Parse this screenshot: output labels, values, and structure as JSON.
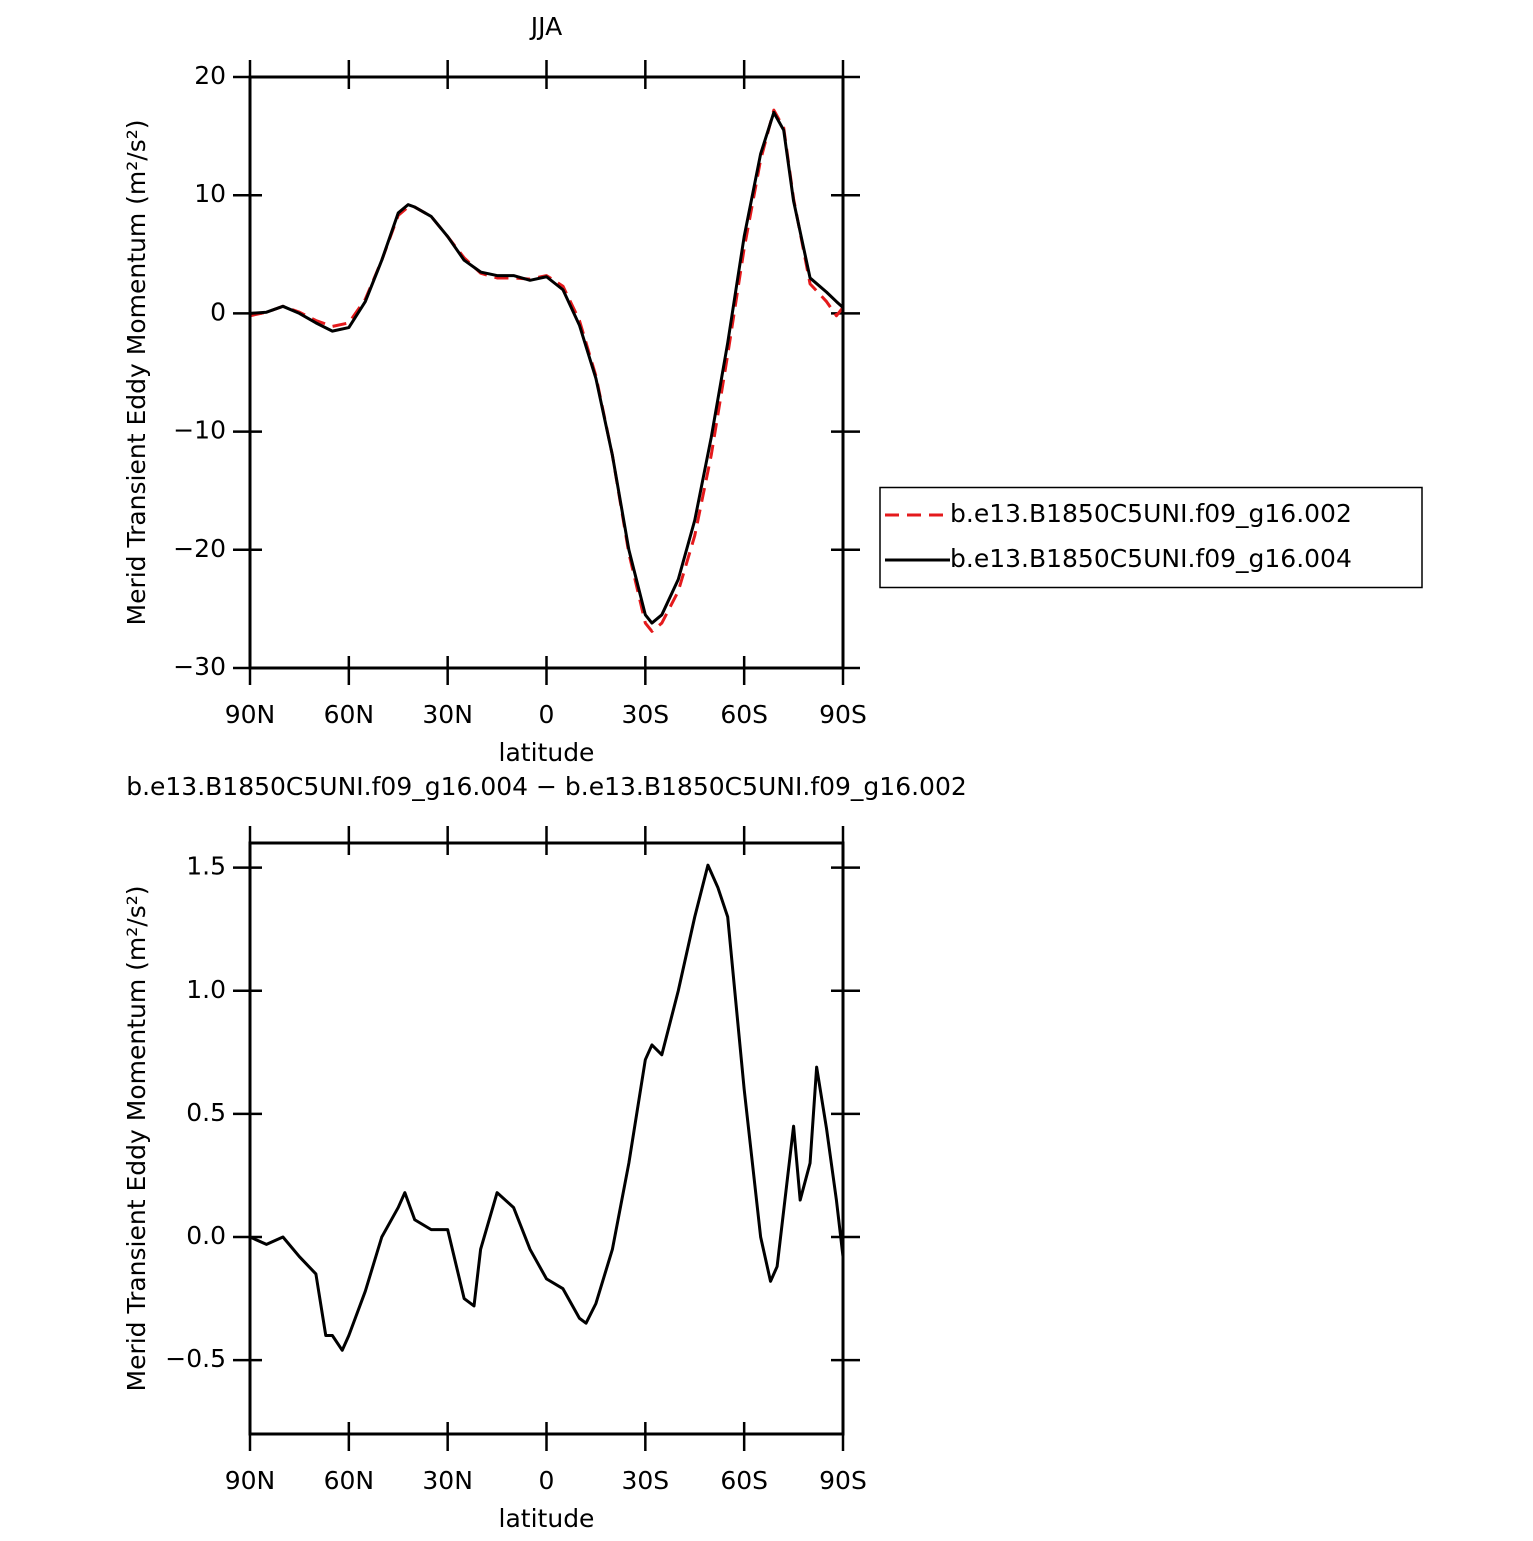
{
  "chart_data": [
    {
      "type": "line",
      "title": "JJA",
      "xlabel": "latitude",
      "ylabel": "Merid Transient Eddy Momentum (m²/s²)",
      "xlim": [
        90,
        -90
      ],
      "ylim": [
        -30,
        20
      ],
      "xticks": [
        {
          "value": 90,
          "label": "90N"
        },
        {
          "value": 60,
          "label": "60N"
        },
        {
          "value": 30,
          "label": "30N"
        },
        0,
        {
          "value": -30,
          "label": "30S"
        },
        {
          "value": -60,
          "label": "60S"
        },
        {
          "value": -90,
          "label": "90S"
        }
      ],
      "yticks": [
        20,
        10,
        0,
        {
          "value": -10,
          "label": "−10"
        },
        {
          "value": -20,
          "label": "−20"
        },
        {
          "value": -30,
          "label": "−30"
        }
      ],
      "legend": "right",
      "x": [
        90,
        85,
        80,
        75,
        70,
        65,
        60,
        55,
        50,
        45,
        42,
        40,
        35,
        30,
        25,
        20,
        15,
        10,
        5,
        0,
        -5,
        -10,
        -15,
        -20,
        -25,
        -30,
        -32,
        -35,
        -40,
        -45,
        -50,
        -55,
        -60,
        -65,
        -69,
        -72,
        -75,
        -80,
        -85,
        -88,
        -90
      ],
      "series": [
        {
          "name": "b.e13.B1850C5UNI.f09_g16.002",
          "color": "#e41a1c",
          "linestyle": "dashed",
          "values": [
            -0.2,
            0.1,
            0.6,
            0.1,
            -0.6,
            -1.1,
            -0.8,
            1.2,
            4.5,
            8.3,
            9.0,
            9.0,
            8.2,
            6.5,
            4.7,
            3.4,
            3.0,
            3.0,
            2.9,
            3.2,
            2.3,
            -0.6,
            -5.3,
            -12,
            -20.3,
            -26.2,
            -26.9,
            -26.2,
            -23.5,
            -18.8,
            -12,
            -3.5,
            5.5,
            13,
            17.2,
            15.7,
            9.7,
            2.5,
            1.0,
            -0.2,
            0.5
          ]
        },
        {
          "name": "b.e13.B1850C5UNI.f09_g16.004",
          "color": "#000000",
          "linestyle": "solid",
          "values": [
            0,
            0.1,
            0.6,
            0,
            -0.8,
            -1.5,
            -1.2,
            1.0,
            4.5,
            8.5,
            9.2,
            9.0,
            8.2,
            6.5,
            4.5,
            3.5,
            3.2,
            3.2,
            2.8,
            3.1,
            2.0,
            -1.0,
            -5.5,
            -12,
            -20,
            -25.5,
            -26.2,
            -25.5,
            -22.5,
            -17.5,
            -10.5,
            -2.5,
            6.5,
            13.5,
            17.0,
            15.5,
            9.5,
            3.0,
            1.8,
            1.0,
            0.5
          ]
        }
      ]
    },
    {
      "type": "line",
      "title": "b.e13.B1850C5UNI.f09_g16.004 − b.e13.B1850C5UNI.f09_g16.002",
      "xlabel": "latitude",
      "ylabel": "Merid Transient Eddy Momentum (m²/s²)",
      "xlim": [
        90,
        -90
      ],
      "ylim": [
        -0.8,
        1.6
      ],
      "xticks": [
        {
          "value": 90,
          "label": "90N"
        },
        {
          "value": 60,
          "label": "60N"
        },
        {
          "value": 30,
          "label": "30N"
        },
        0,
        {
          "value": -30,
          "label": "30S"
        },
        {
          "value": -60,
          "label": "60S"
        },
        {
          "value": -90,
          "label": "90S"
        }
      ],
      "yticks": [
        1.5,
        {
          "value": 1.0,
          "label": "1.0"
        },
        0.5,
        {
          "value": 0.0,
          "label": "0.0"
        },
        {
          "value": -0.5,
          "label": "−0.5"
        }
      ],
      "x": [
        90,
        85,
        80,
        75,
        70,
        67,
        65,
        62,
        60,
        55,
        50,
        45,
        43,
        40,
        35,
        30,
        25,
        22,
        20,
        15,
        10,
        5,
        0,
        -5,
        -10,
        -12,
        -15,
        -20,
        -25,
        -30,
        -32,
        -35,
        -40,
        -45,
        -49,
        -52,
        -55,
        -60,
        -65,
        -68,
        -70,
        -75,
        -77,
        -80,
        -82,
        -85,
        -88,
        -90
      ],
      "series": [
        {
          "color": "#000000",
          "linestyle": "solid",
          "values": [
            0,
            -0.03,
            0.0,
            -0.08,
            -0.15,
            -0.4,
            -0.4,
            -0.46,
            -0.4,
            -0.22,
            0.0,
            0.12,
            0.18,
            0.07,
            0.03,
            0.03,
            -0.25,
            -0.28,
            -0.05,
            0.18,
            0.12,
            -0.05,
            -0.17,
            -0.21,
            -0.33,
            -0.35,
            -0.27,
            -0.05,
            0.3,
            0.72,
            0.78,
            0.74,
            1.0,
            1.3,
            1.51,
            1.42,
            1.3,
            0.6,
            0.0,
            -0.18,
            -0.12,
            0.45,
            0.15,
            0.3,
            0.69,
            0.44,
            0.15,
            -0.08
          ]
        }
      ]
    }
  ]
}
